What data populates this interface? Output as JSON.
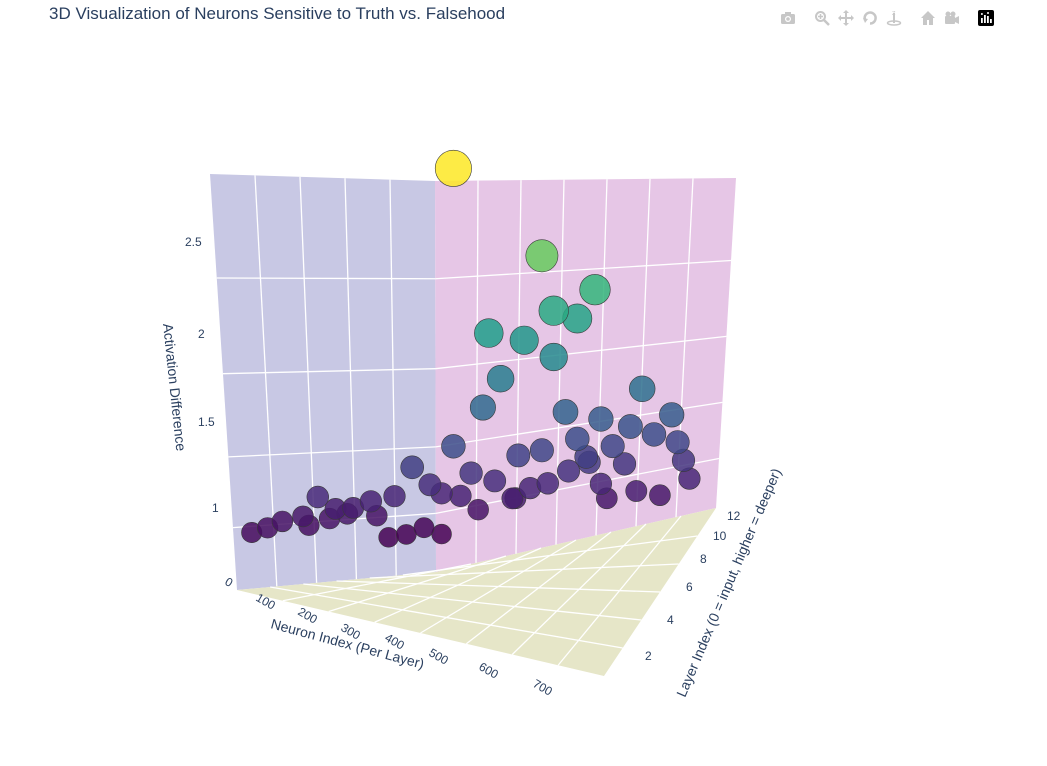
{
  "chart_data": {
    "type": "scatter3d",
    "title": "3D Visualization of Neurons Sensitive to Truth vs. Falsehood",
    "x_axis": {
      "label": "Neuron Index (Per Layer)",
      "ticks": [
        "0",
        "100",
        "200",
        "300",
        "400",
        "500",
        "600",
        "700"
      ],
      "range": [
        0,
        768
      ]
    },
    "y_axis": {
      "label": "Layer Index (0 = input, higher = deeper)",
      "ticks": [
        "2",
        "4",
        "6",
        "8",
        "10",
        "12"
      ],
      "range": [
        0,
        12
      ]
    },
    "z_axis": {
      "label": "Activation Difference",
      "ticks": [
        "1",
        "1.5",
        "2",
        "2.5"
      ],
      "range": [
        0.9,
        2.8
      ]
    },
    "colorscale": "viridis",
    "marker_size_encodes": "activation difference",
    "points": [
      [
        8,
        0.95
      ],
      [
        35,
        0.97
      ],
      [
        60,
        1.0
      ],
      [
        95,
        1.02
      ],
      [
        105,
        0.97
      ],
      [
        150,
        1.05
      ],
      [
        170,
        1.02
      ],
      [
        210,
        1.08
      ],
      [
        240,
        0.88
      ],
      [
        270,
        0.89
      ],
      [
        300,
        0.92
      ],
      [
        330,
        0.88
      ],
      [
        362,
        1.08
      ],
      [
        392,
        1.0
      ],
      [
        420,
        1.15
      ],
      [
        455,
        1.05
      ],
      [
        480,
        1.1
      ],
      [
        510,
        1.12
      ],
      [
        545,
        1.18
      ],
      [
        580,
        1.22
      ],
      [
        600,
        1.1
      ],
      [
        640,
        1.2
      ],
      [
        660,
        1.05
      ],
      [
        700,
        1.02
      ],
      [
        730,
        1.3
      ],
      [
        750,
        1.1
      ],
      [
        120,
        1.12
      ],
      [
        280,
        1.25
      ],
      [
        350,
        1.35
      ],
      [
        400,
        1.55
      ],
      [
        430,
        1.7
      ],
      [
        520,
        1.8
      ],
      [
        540,
        1.5
      ],
      [
        600,
        1.45
      ],
      [
        670,
        1.6
      ],
      [
        690,
        1.35
      ],
      [
        500,
        1.3
      ],
      [
        460,
        1.28
      ],
      [
        380,
        1.2
      ],
      [
        310,
        1.15
      ],
      [
        250,
        1.1
      ],
      [
        180,
        1.05
      ],
      [
        560,
        1.35
      ],
      [
        620,
        1.3
      ],
      [
        720,
        1.45
      ],
      [
        740,
        1.2
      ],
      [
        410,
        1.95
      ],
      [
        470,
        1.9
      ],
      [
        520,
        2.05
      ],
      [
        560,
        2.0
      ],
      [
        590,
        2.15
      ],
      [
        500,
        2.35
      ],
      [
        350,
        2.85
      ],
      [
        450,
        1.05
      ],
      [
        610,
        1.02
      ],
      [
        330,
        1.1
      ],
      [
        220,
        1.0
      ],
      [
        140,
        1.0
      ],
      [
        650,
        1.4
      ],
      [
        575,
        1.25
      ]
    ]
  },
  "modebar": {
    "buttons": [
      "camera-icon",
      "zoom-icon",
      "pan-icon",
      "orbit-rotate-icon",
      "turntable-icon",
      "home-icon",
      "camera-view-icon",
      "plotly-logo-icon"
    ]
  },
  "colors": {
    "wall_left": "#c8c8e4",
    "wall_right": "#e6c6e6",
    "floor": "#e6e6c8",
    "axis_text": "#2a3f5f"
  }
}
